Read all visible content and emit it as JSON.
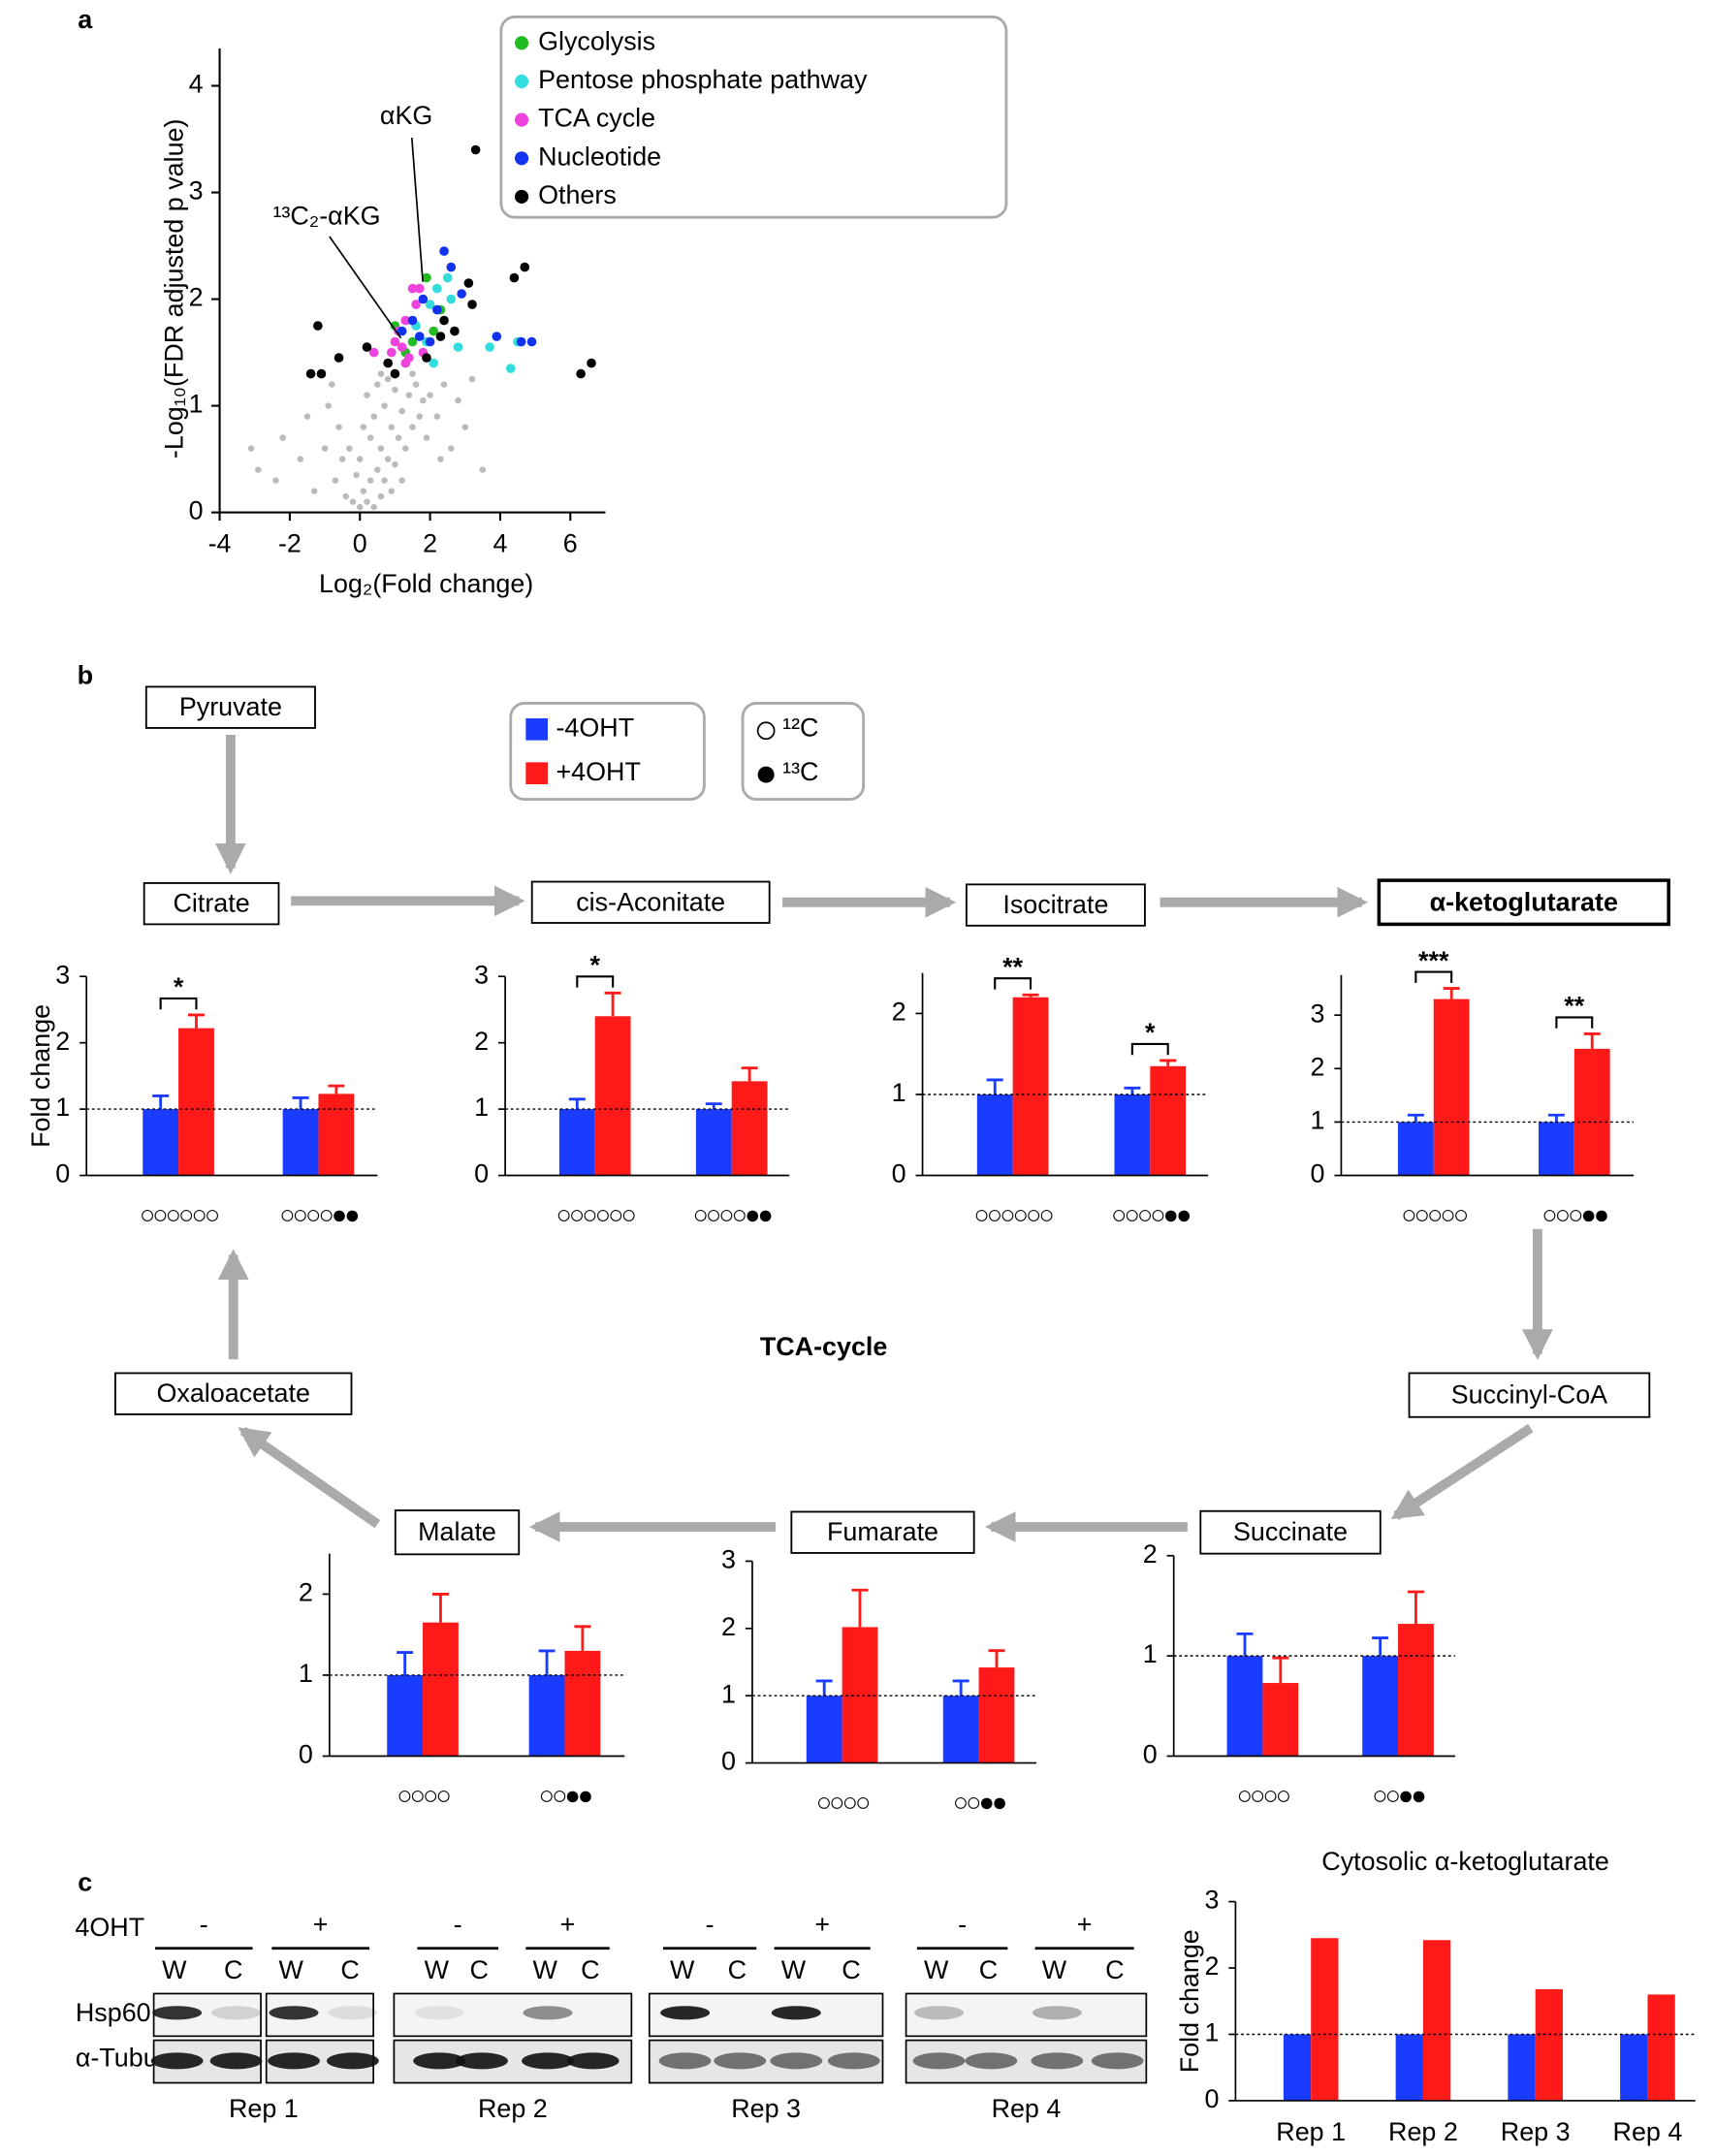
{
  "panel_labels": [
    "a",
    "b",
    "c"
  ],
  "chart_data": [
    {
      "type": "scatter",
      "xlabel": "Log₂(Fold change)",
      "ylabel": "-Log₁₀(FDR adjusted p value)",
      "xlim": [
        -4,
        7
      ],
      "ylim": [
        0,
        4.35
      ],
      "xticks": [
        -4,
        -2,
        0,
        2,
        4,
        6
      ],
      "yticks": [
        0,
        1,
        2,
        3,
        4
      ],
      "annotations": [
        "αKG",
        "¹³C₂-αKG"
      ],
      "series": [
        {
          "color": "#bbbbbb",
          "x": [
            -3.1,
            -2.9,
            -2.4,
            -2.2,
            -1.7,
            -1.5,
            -1.3,
            -1.0,
            -0.9,
            -0.7,
            -0.6,
            -0.5,
            -0.4,
            -0.3,
            -0.2,
            -0.1,
            0,
            0,
            0.1,
            0.1,
            0.2,
            0.2,
            0.3,
            0.3,
            0.4,
            0.4,
            0.5,
            0.5,
            0.6,
            0.6,
            0.7,
            0.7,
            0.8,
            0.8,
            0.9,
            0.9,
            1.0,
            1.0,
            1.1,
            1.2,
            1.3,
            1.4,
            1.5,
            1.6,
            1.7,
            1.8,
            1.9,
            2.0,
            2.2,
            2.4,
            2.6,
            2.8,
            3.0,
            3.2,
            3.5,
            1.2,
            0.6,
            -0.8,
            2.3,
            1.5
          ],
          "values": [
            0.6,
            0.4,
            0.3,
            0.7,
            0.5,
            0.9,
            0.2,
            0.6,
            1.0,
            0.3,
            0.8,
            0.5,
            0.15,
            0.6,
            0.1,
            0.35,
            0.05,
            0.5,
            0.2,
            0.8,
            0.1,
            1.1,
            0.3,
            0.7,
            0.05,
            0.9,
            0.4,
            1.2,
            0.15,
            0.6,
            0.3,
            1.0,
            0.5,
            1.25,
            0.2,
            0.8,
            0.45,
            1.15,
            0.7,
            0.95,
            0.6,
            1.1,
            0.8,
            1.2,
            0.9,
            1.05,
            0.7,
            1.1,
            0.9,
            1.2,
            0.6,
            1.05,
            0.8,
            1.25,
            0.4,
            0.3,
            1.3,
            1.2,
            0.5,
            1.3
          ]
        },
        {
          "name": "Glycolysis",
          "color": "#22bb22",
          "x": [
            1.9,
            2.3,
            1.0,
            1.5,
            2.1,
            1.3
          ],
          "values": [
            2.2,
            1.9,
            1.75,
            1.6,
            1.7,
            1.5
          ]
        },
        {
          "name": "Pentose phosphate pathway",
          "color": "#33dddd",
          "x": [
            2.2,
            2.5,
            2.6,
            2.0,
            1.9,
            2.8,
            3.7,
            4.3,
            4.5,
            2.1,
            1.6
          ],
          "values": [
            2.1,
            2.2,
            2.0,
            1.95,
            1.6,
            1.55,
            1.55,
            1.35,
            1.6,
            1.4,
            1.75
          ]
        },
        {
          "name": "TCA cycle",
          "color": "#ee44dd",
          "x": [
            1.5,
            1.7,
            1.3,
            1.6,
            1.0,
            1.2,
            1.4,
            0.9,
            0.4,
            1.1,
            1.8,
            1.3
          ],
          "values": [
            2.1,
            2.1,
            1.8,
            1.95,
            1.6,
            1.55,
            1.45,
            1.5,
            1.5,
            1.7,
            1.5,
            1.4
          ]
        },
        {
          "name": "Nucleotide",
          "color": "#1133ee",
          "x": [
            2.4,
            2.6,
            2.9,
            2.2,
            1.8,
            1.5,
            1.7,
            3.9,
            4.6,
            4.9,
            2.0,
            1.2
          ],
          "values": [
            2.45,
            2.3,
            2.05,
            1.9,
            2.0,
            1.8,
            1.65,
            1.65,
            1.6,
            1.6,
            1.6,
            1.7
          ]
        },
        {
          "name": "Others",
          "color": "#000000",
          "x": [
            3.3,
            4.4,
            4.7,
            3.1,
            3.2,
            2.4,
            2.3,
            -1.2,
            -1.4,
            -1.1,
            -0.6,
            0.2,
            0.8,
            1.0,
            6.3,
            6.6,
            2.7,
            1.9
          ],
          "values": [
            3.4,
            2.2,
            2.3,
            2.15,
            1.95,
            1.8,
            1.65,
            1.75,
            1.3,
            1.3,
            1.45,
            1.55,
            1.4,
            1.3,
            1.3,
            1.4,
            1.7,
            1.45
          ]
        }
      ]
    },
    {
      "type": "bar",
      "ylabel": "Fold change",
      "categories": [
        "○○○○○○",
        "○○○○●●"
      ],
      "ylim": [
        0,
        3
      ],
      "yticks": [
        0,
        1,
        2,
        3
      ],
      "reference_line": 1,
      "significance": [
        "*",
        null
      ],
      "series": [
        {
          "name": "-4OHT",
          "color": "#1a3cff",
          "values": [
            1,
            1
          ],
          "errors": [
            0.2,
            0.17
          ]
        },
        {
          "name": "+4OHT",
          "color": "#ff1a1a",
          "values": [
            2.22,
            1.23
          ],
          "errors": [
            0.2,
            0.12
          ]
        }
      ]
    },
    {
      "type": "bar",
      "categories": [
        "○○○○○○",
        "○○○○●●"
      ],
      "ylim": [
        0,
        3
      ],
      "yticks": [
        0,
        1,
        2,
        3
      ],
      "reference_line": 1,
      "significance": [
        "*",
        null
      ],
      "series": [
        {
          "color": "#1a3cff",
          "values": [
            1,
            1
          ],
          "errors": [
            0.15,
            0.08
          ]
        },
        {
          "color": "#ff1a1a",
          "values": [
            2.4,
            1.42
          ],
          "errors": [
            0.35,
            0.2
          ]
        }
      ]
    },
    {
      "type": "bar",
      "categories": [
        "○○○○○○",
        "○○○○●●"
      ],
      "ylim": [
        0,
        2.5
      ],
      "yticks": [
        0,
        1,
        2
      ],
      "reference_line": 1,
      "significance": [
        "**",
        "*"
      ],
      "series": [
        {
          "color": "#1a3cff",
          "values": [
            1,
            1
          ],
          "errors": [
            0.18,
            0.08
          ]
        },
        {
          "color": "#ff1a1a",
          "values": [
            2.2,
            1.35
          ],
          "errors": [
            0.03,
            0.07
          ]
        }
      ]
    },
    {
      "type": "bar",
      "categories": [
        "○○○○○",
        "○○○●●"
      ],
      "ylim": [
        0,
        3.75
      ],
      "yticks": [
        0,
        1,
        2,
        3
      ],
      "reference_line": 1,
      "significance": [
        "***",
        "**"
      ],
      "series": [
        {
          "color": "#1a3cff",
          "values": [
            1,
            1
          ],
          "errors": [
            0.13,
            0.13
          ]
        },
        {
          "color": "#ff1a1a",
          "values": [
            3.3,
            2.37
          ],
          "errors": [
            0.2,
            0.28
          ]
        }
      ]
    },
    {
      "type": "bar",
      "categories": [
        "○○○○",
        "○○●●"
      ],
      "ylim": [
        0,
        2.5
      ],
      "yticks": [
        0,
        1,
        2
      ],
      "reference_line": 1,
      "series": [
        {
          "color": "#1a3cff",
          "values": [
            1,
            1
          ],
          "errors": [
            0.28,
            0.3
          ]
        },
        {
          "color": "#ff1a1a",
          "values": [
            1.65,
            1.3
          ],
          "errors": [
            0.35,
            0.3
          ]
        }
      ]
    },
    {
      "type": "bar",
      "categories": [
        "○○○○",
        "○○●●"
      ],
      "ylim": [
        0,
        3
      ],
      "yticks": [
        0,
        1,
        2,
        3
      ],
      "reference_line": 1,
      "series": [
        {
          "color": "#1a3cff",
          "values": [
            1,
            1
          ],
          "errors": [
            0.22,
            0.22
          ]
        },
        {
          "color": "#ff1a1a",
          "values": [
            2.02,
            1.42
          ],
          "errors": [
            0.55,
            0.25
          ]
        }
      ]
    },
    {
      "type": "bar",
      "categories": [
        "○○○○",
        "○○●●"
      ],
      "ylim": [
        0,
        2
      ],
      "yticks": [
        0,
        1,
        2
      ],
      "reference_line": 1,
      "series": [
        {
          "color": "#1a3cff",
          "values": [
            1,
            1
          ],
          "errors": [
            0.22,
            0.18
          ]
        },
        {
          "color": "#ff1a1a",
          "values": [
            0.73,
            1.32
          ],
          "errors": [
            0.25,
            0.32
          ]
        }
      ]
    },
    {
      "type": "bar",
      "title": "Cytosolic α-ketoglutarate",
      "ylabel": "Fold change",
      "categories": [
        "Rep 1",
        "Rep 2",
        "Rep 3",
        "Rep 4"
      ],
      "ylim": [
        0,
        3
      ],
      "yticks": [
        0,
        1,
        2,
        3
      ],
      "reference_line": 1,
      "series": [
        {
          "color": "#1a3cff",
          "values": [
            1,
            1,
            1,
            1
          ]
        },
        {
          "color": "#ff1a1a",
          "values": [
            2.45,
            2.42,
            1.68,
            1.6
          ]
        }
      ]
    }
  ],
  "diagram": {
    "nodes": [
      "Pyruvate",
      "Citrate",
      "cis-Aconitate",
      "Isocitrate",
      "α-ketoglutarate",
      "Succinyl-CoA",
      "Succinate",
      "Fumarate",
      "Malate",
      "Oxaloacetate"
    ],
    "cycle_label": "TCA-cycle",
    "isotope_legend": [
      "¹²C",
      "¹³C"
    ]
  },
  "blot": {
    "treatment_label": "4OHT",
    "signs": [
      "-",
      "+",
      "-",
      "+",
      "-",
      "+",
      "-",
      "+"
    ],
    "lanes": [
      "W",
      "C",
      "W",
      "C",
      "W",
      "C",
      "W",
      "C",
      "W",
      "C",
      "W",
      "C",
      "W",
      "C",
      "W",
      "C"
    ],
    "rows": [
      "Hsp60",
      "α-Tubulin"
    ],
    "replicates": [
      "Rep 1",
      "Rep 2",
      "Rep 3",
      "Rep 4"
    ]
  }
}
